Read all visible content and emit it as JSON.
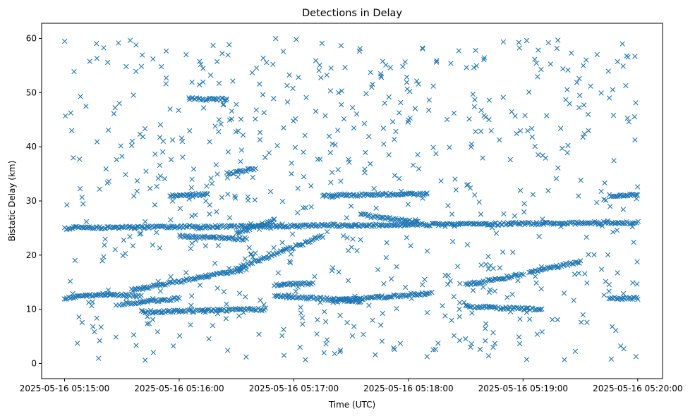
{
  "chart_data": {
    "type": "scatter",
    "title": "Detections in Delay",
    "xlabel": "Time (UTC)",
    "ylabel": "Bistatic Delay (km)",
    "marker": "x",
    "color": "#1f77b4",
    "grid": false,
    "legend": "none",
    "xlim": [
      "2025-05-16 05:14:48",
      "2025-05-16 05:20:13"
    ],
    "ylim": [
      -2.8,
      62.8
    ],
    "xticks": [
      "2025-05-16 05:15:00",
      "2025-05-16 05:16:00",
      "2025-05-16 05:17:00",
      "2025-05-16 05:18:00",
      "2025-05-16 05:19:00",
      "2025-05-16 05:20:00"
    ],
    "yticks": [
      "0",
      "10",
      "20",
      "30",
      "40",
      "50",
      "60"
    ],
    "track_segments": [
      {
        "x": [
          "2025-05-16 05:15:00",
          "2025-05-16 05:15:22"
        ],
        "y": [
          12.0,
          12.8
        ]
      },
      {
        "x": [
          "2025-05-16 05:15:22",
          "2025-05-16 05:15:40"
        ],
        "y": [
          12.8,
          12.5
        ]
      },
      {
        "x": [
          "2025-05-16 05:15:30",
          "2025-05-16 05:16:00"
        ],
        "y": [
          11.0,
          12.0
        ]
      },
      {
        "x": [
          "2025-05-16 05:15:35",
          "2025-05-16 05:16:35"
        ],
        "y": [
          13.5,
          17.5
        ]
      },
      {
        "x": [
          "2025-05-16 05:15:40",
          "2025-05-16 05:16:45"
        ],
        "y": [
          9.5,
          10.0
        ]
      },
      {
        "x": [
          "2025-05-16 05:16:30",
          "2025-05-16 05:17:15"
        ],
        "y": [
          17.5,
          23.5
        ]
      },
      {
        "x": [
          "2025-05-16 05:16:30",
          "2025-05-16 05:16:50"
        ],
        "y": [
          24.0,
          26.5
        ]
      },
      {
        "x": [
          "2025-05-16 05:16:50",
          "2025-05-16 05:17:35"
        ],
        "y": [
          12.5,
          11.5
        ]
      },
      {
        "x": [
          "2025-05-16 05:17:20",
          "2025-05-16 05:18:12"
        ],
        "y": [
          11.5,
          13.0
        ]
      },
      {
        "x": [
          "2025-05-16 05:17:35",
          "2025-05-16 05:18:05"
        ],
        "y": [
          27.5,
          26.0
        ]
      },
      {
        "x": [
          "2025-05-16 05:18:30",
          "2025-05-16 05:19:00"
        ],
        "y": [
          14.5,
          16.5
        ]
      },
      {
        "x": [
          "2025-05-16 05:19:03",
          "2025-05-16 05:19:30"
        ],
        "y": [
          16.8,
          18.8
        ]
      },
      {
        "x": [
          "2025-05-16 05:18:30",
          "2025-05-16 05:19:10"
        ],
        "y": [
          10.5,
          10.0
        ]
      },
      {
        "x": [
          "2025-05-16 05:15:00",
          "2025-05-16 05:20:00"
        ],
        "y": [
          25.0,
          26.0
        ]
      },
      {
        "x": [
          "2025-05-16 05:16:00",
          "2025-05-16 05:16:35"
        ],
        "y": [
          23.5,
          23.0
        ]
      },
      {
        "x": [
          "2025-05-16 05:15:55",
          "2025-05-16 05:16:15"
        ],
        "y": [
          31.0,
          31.2
        ]
      },
      {
        "x": [
          "2025-05-16 05:17:15",
          "2025-05-16 05:18:10"
        ],
        "y": [
          31.0,
          31.3
        ]
      },
      {
        "x": [
          "2025-05-16 05:19:45",
          "2025-05-16 05:20:00"
        ],
        "y": [
          12.0,
          12.0
        ]
      },
      {
        "x": [
          "2025-05-16 05:19:45",
          "2025-05-16 05:20:00"
        ],
        "y": [
          31.0,
          31.2
        ]
      },
      {
        "x": [
          "2025-05-16 05:16:05",
          "2025-05-16 05:16:25"
        ],
        "y": [
          48.8,
          48.8
        ]
      },
      {
        "x": [
          "2025-05-16 05:16:25",
          "2025-05-16 05:16:40"
        ],
        "y": [
          35.0,
          36.0
        ]
      },
      {
        "x": [
          "2025-05-16 05:16:50",
          "2025-05-16 05:17:10"
        ],
        "y": [
          14.5,
          14.8
        ]
      }
    ]
  }
}
